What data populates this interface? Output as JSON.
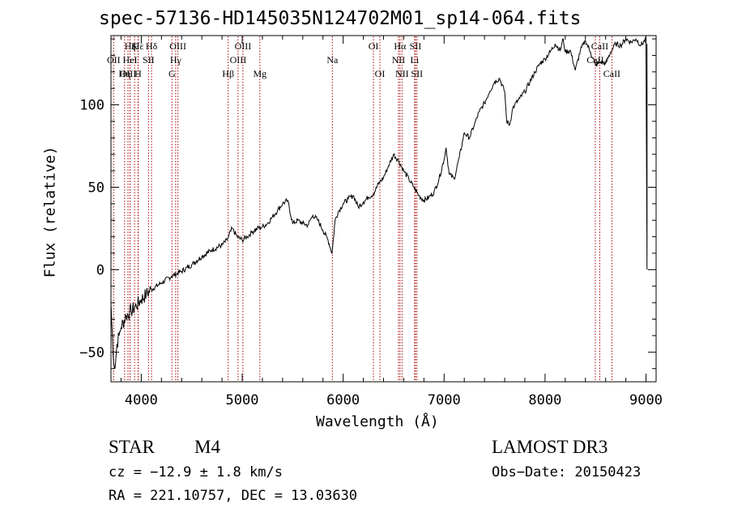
{
  "chart_data": {
    "type": "line",
    "title": "spec-57136-HD145035N124702M01_sp14-064.fits",
    "xlabel": "Wavelength (Å)",
    "ylabel": "Flux (relative)",
    "xlim": [
      3700,
      9100
    ],
    "ylim": [
      -68,
      142
    ],
    "xticks": [
      4000,
      5000,
      6000,
      7000,
      8000,
      9000
    ],
    "yticks": [
      -50,
      0,
      50,
      100
    ],
    "grid": false,
    "series": [
      {
        "name": "spectrum",
        "x": [
          3700,
          3720,
          3740,
          3760,
          3780,
          3800,
          3850,
          3900,
          3950,
          4000,
          4050,
          4100,
          4200,
          4300,
          4400,
          4500,
          4600,
          4700,
          4800,
          4850,
          4900,
          4950,
          5000,
          5050,
          5100,
          5150,
          5200,
          5250,
          5300,
          5350,
          5400,
          5450,
          5500,
          5550,
          5600,
          5650,
          5700,
          5750,
          5800,
          5850,
          5890,
          5920,
          5950,
          6000,
          6050,
          6100,
          6150,
          6200,
          6250,
          6300,
          6350,
          6400,
          6450,
          6500,
          6550,
          6600,
          6650,
          6700,
          6750,
          6800,
          6850,
          6900,
          6950,
          7000,
          7020,
          7050,
          7100,
          7150,
          7200,
          7250,
          7300,
          7350,
          7400,
          7450,
          7500,
          7550,
          7600,
          7620,
          7650,
          7680,
          7700,
          7750,
          7800,
          7850,
          7900,
          7950,
          8000,
          8050,
          8100,
          8150,
          8180,
          8200,
          8250,
          8300,
          8350,
          8400,
          8450,
          8500,
          8550,
          8600,
          8650,
          8700,
          8750,
          8800,
          8850,
          8900,
          8950,
          9000,
          9010
        ],
        "y": [
          -20,
          -50,
          -60,
          -45,
          -40,
          -35,
          -28,
          -25,
          -22,
          -18,
          -15,
          -12,
          -8,
          -4,
          -1,
          3,
          8,
          12,
          15,
          18,
          25,
          20,
          18,
          20,
          23,
          25,
          26,
          28,
          32,
          36,
          40,
          42,
          28,
          30,
          28,
          27,
          33,
          30,
          24,
          18,
          10,
          30,
          35,
          40,
          43,
          45,
          38,
          41,
          44,
          46,
          52,
          56,
          63,
          70,
          66,
          60,
          55,
          50,
          45,
          42,
          44,
          47,
          55,
          67,
          74,
          58,
          55,
          68,
          83,
          80,
          88,
          96,
          101,
          108,
          114,
          116,
          108,
          90,
          88,
          98,
          100,
          104,
          108,
          114,
          120,
          125,
          128,
          132,
          137,
          133,
          140,
          132,
          133,
          121,
          133,
          139,
          132,
          124,
          126,
          125,
          132,
          137,
          136,
          140,
          138,
          140,
          136,
          140,
          0
        ]
      }
    ],
    "lines": [
      {
        "name": "Hε",
        "label": "Hε",
        "x": 3970,
        "row": 1
      },
      {
        "name": "Hζ",
        "label": "Hζ",
        "x": 3889,
        "row": 1
      },
      {
        "name": "Hη",
        "label": "Hη",
        "x": 3835,
        "row": 3
      },
      {
        "name": "K",
        "label": "K",
        "x": 3934,
        "row": 1
      },
      {
        "name": "H",
        "label": "H",
        "x": 3968,
        "row": 3
      },
      {
        "name": "OII",
        "label": "OII",
        "x": 3727,
        "row": 2
      },
      {
        "name": "OIII-3869",
        "label": "OIII",
        "x": 3869,
        "row": 3
      },
      {
        "name": "HeI",
        "label": "HeI",
        "x": 3889,
        "row": 2
      },
      {
        "name": "SII-4072",
        "label": "SII",
        "x": 4072,
        "row": 2
      },
      {
        "name": "Hδ",
        "label": "Hδ",
        "x": 4102,
        "row": 1
      },
      {
        "name": "OIII-4363",
        "label": "OIII",
        "x": 4363,
        "row": 1
      },
      {
        "name": "Hγ",
        "label": "Hγ",
        "x": 4341,
        "row": 2
      },
      {
        "name": "G",
        "label": "G",
        "x": 4304,
        "row": 3
      },
      {
        "name": "Hβ",
        "label": "Hβ",
        "x": 4861,
        "row": 3
      },
      {
        "name": "OIII-4959",
        "label": "OIII",
        "x": 4959,
        "row": 2
      },
      {
        "name": "OIII-5007",
        "label": "OIII",
        "x": 5007,
        "row": 1
      },
      {
        "name": "Mg",
        "label": "Mg",
        "x": 5175,
        "row": 3
      },
      {
        "name": "Na",
        "label": "Na",
        "x": 5893,
        "row": 2
      },
      {
        "name": "OI-6300",
        "label": "OI",
        "x": 6300,
        "row": 1
      },
      {
        "name": "OI-6364",
        "label": "OI",
        "x": 6364,
        "row": 3
      },
      {
        "name": "Hα",
        "label": "Hα",
        "x": 6563,
        "row": 1
      },
      {
        "name": "NII-6548",
        "label": "NII",
        "x": 6548,
        "row": 2
      },
      {
        "name": "NII-6583",
        "label": "NII",
        "x": 6583,
        "row": 3
      },
      {
        "name": "SII-6716",
        "label": "SII",
        "x": 6716,
        "row": 1
      },
      {
        "name": "Li",
        "label": "Li",
        "x": 6708,
        "row": 2
      },
      {
        "name": "SII-6731",
        "label": "SII",
        "x": 6731,
        "row": 3
      },
      {
        "name": "CaII-8498",
        "label": "CaII",
        "x": 8498,
        "row": 2
      },
      {
        "name": "CaII-8542",
        "label": "CaII",
        "x": 8542,
        "row": 1
      },
      {
        "name": "CaII-8662",
        "label": "CaII",
        "x": 8662,
        "row": 3
      }
    ]
  },
  "info": {
    "object_class": "STAR",
    "subclass": "M4",
    "redshift": "cz = −12.9 ± 1.8 km/s",
    "coords": "RA = 221.10757, DEC =  13.03630",
    "survey": "LAMOST DR3",
    "obs_date": "Obs−Date: 20150423"
  },
  "colors": {
    "spectrum": "#000000",
    "line_marker": "#aa0000",
    "axis": "#000000"
  }
}
